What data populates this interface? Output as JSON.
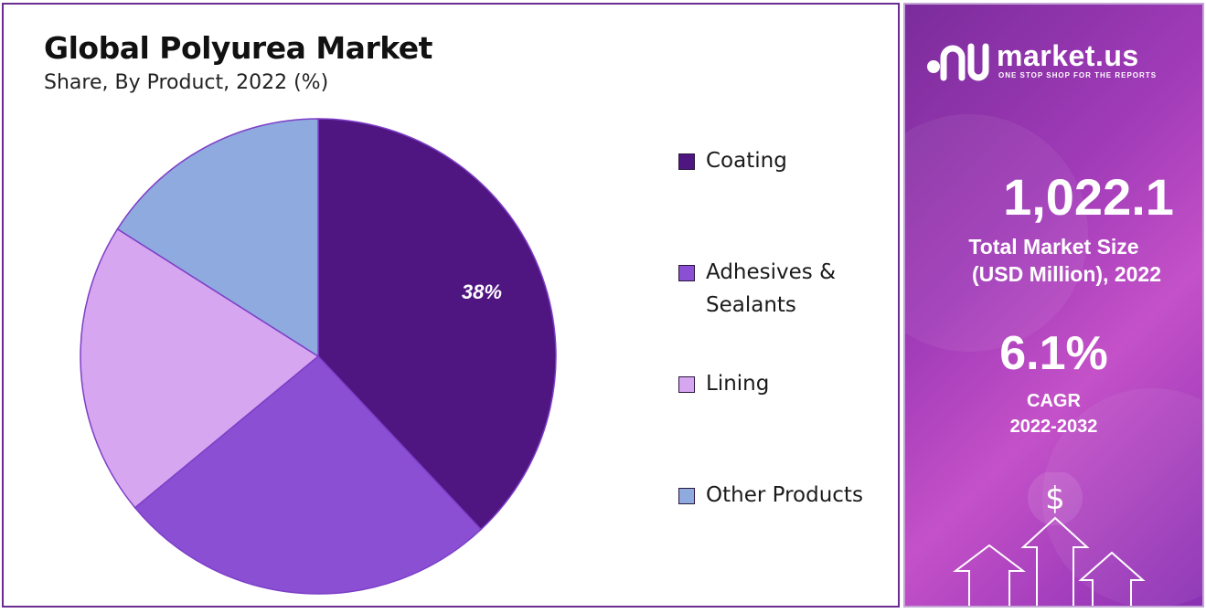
{
  "chart_data": {
    "type": "pie",
    "title": "Global Polyurea Market",
    "subtitle": "Share, By Product, 2022 (%)",
    "categories": [
      "Coating",
      "Adhesives & Sealants",
      "Lining",
      "Other Products"
    ],
    "values": [
      38,
      26,
      20,
      16
    ],
    "colors": [
      "#4f1581",
      "#8b4fd4",
      "#d6a6f0",
      "#8eaadf"
    ],
    "data_labels": [
      "38%",
      "",
      "",
      ""
    ],
    "legend_position": "right"
  },
  "legend": {
    "items": [
      {
        "line1": "Coating",
        "line2": ""
      },
      {
        "line1": "Adhesives &",
        "line2": "Sealants"
      },
      {
        "line1": "Lining",
        "line2": ""
      },
      {
        "line1": "Other Products",
        "line2": ""
      }
    ]
  },
  "brand": {
    "name": "market.us",
    "tagline": "ONE STOP SHOP FOR THE REPORTS"
  },
  "stats": {
    "market_size_value": "1,022.1",
    "market_size_caption_1": "Total Market Size",
    "market_size_caption_2": "(USD Million), 2022",
    "cagr_value": "6.1%",
    "cagr_caption_1": "CAGR",
    "cagr_caption_2": "2022-2032"
  },
  "icons": {
    "dollar": "$",
    "logo_icon": "market-us-logo-icon",
    "arrows": "up-arrow-icon"
  }
}
